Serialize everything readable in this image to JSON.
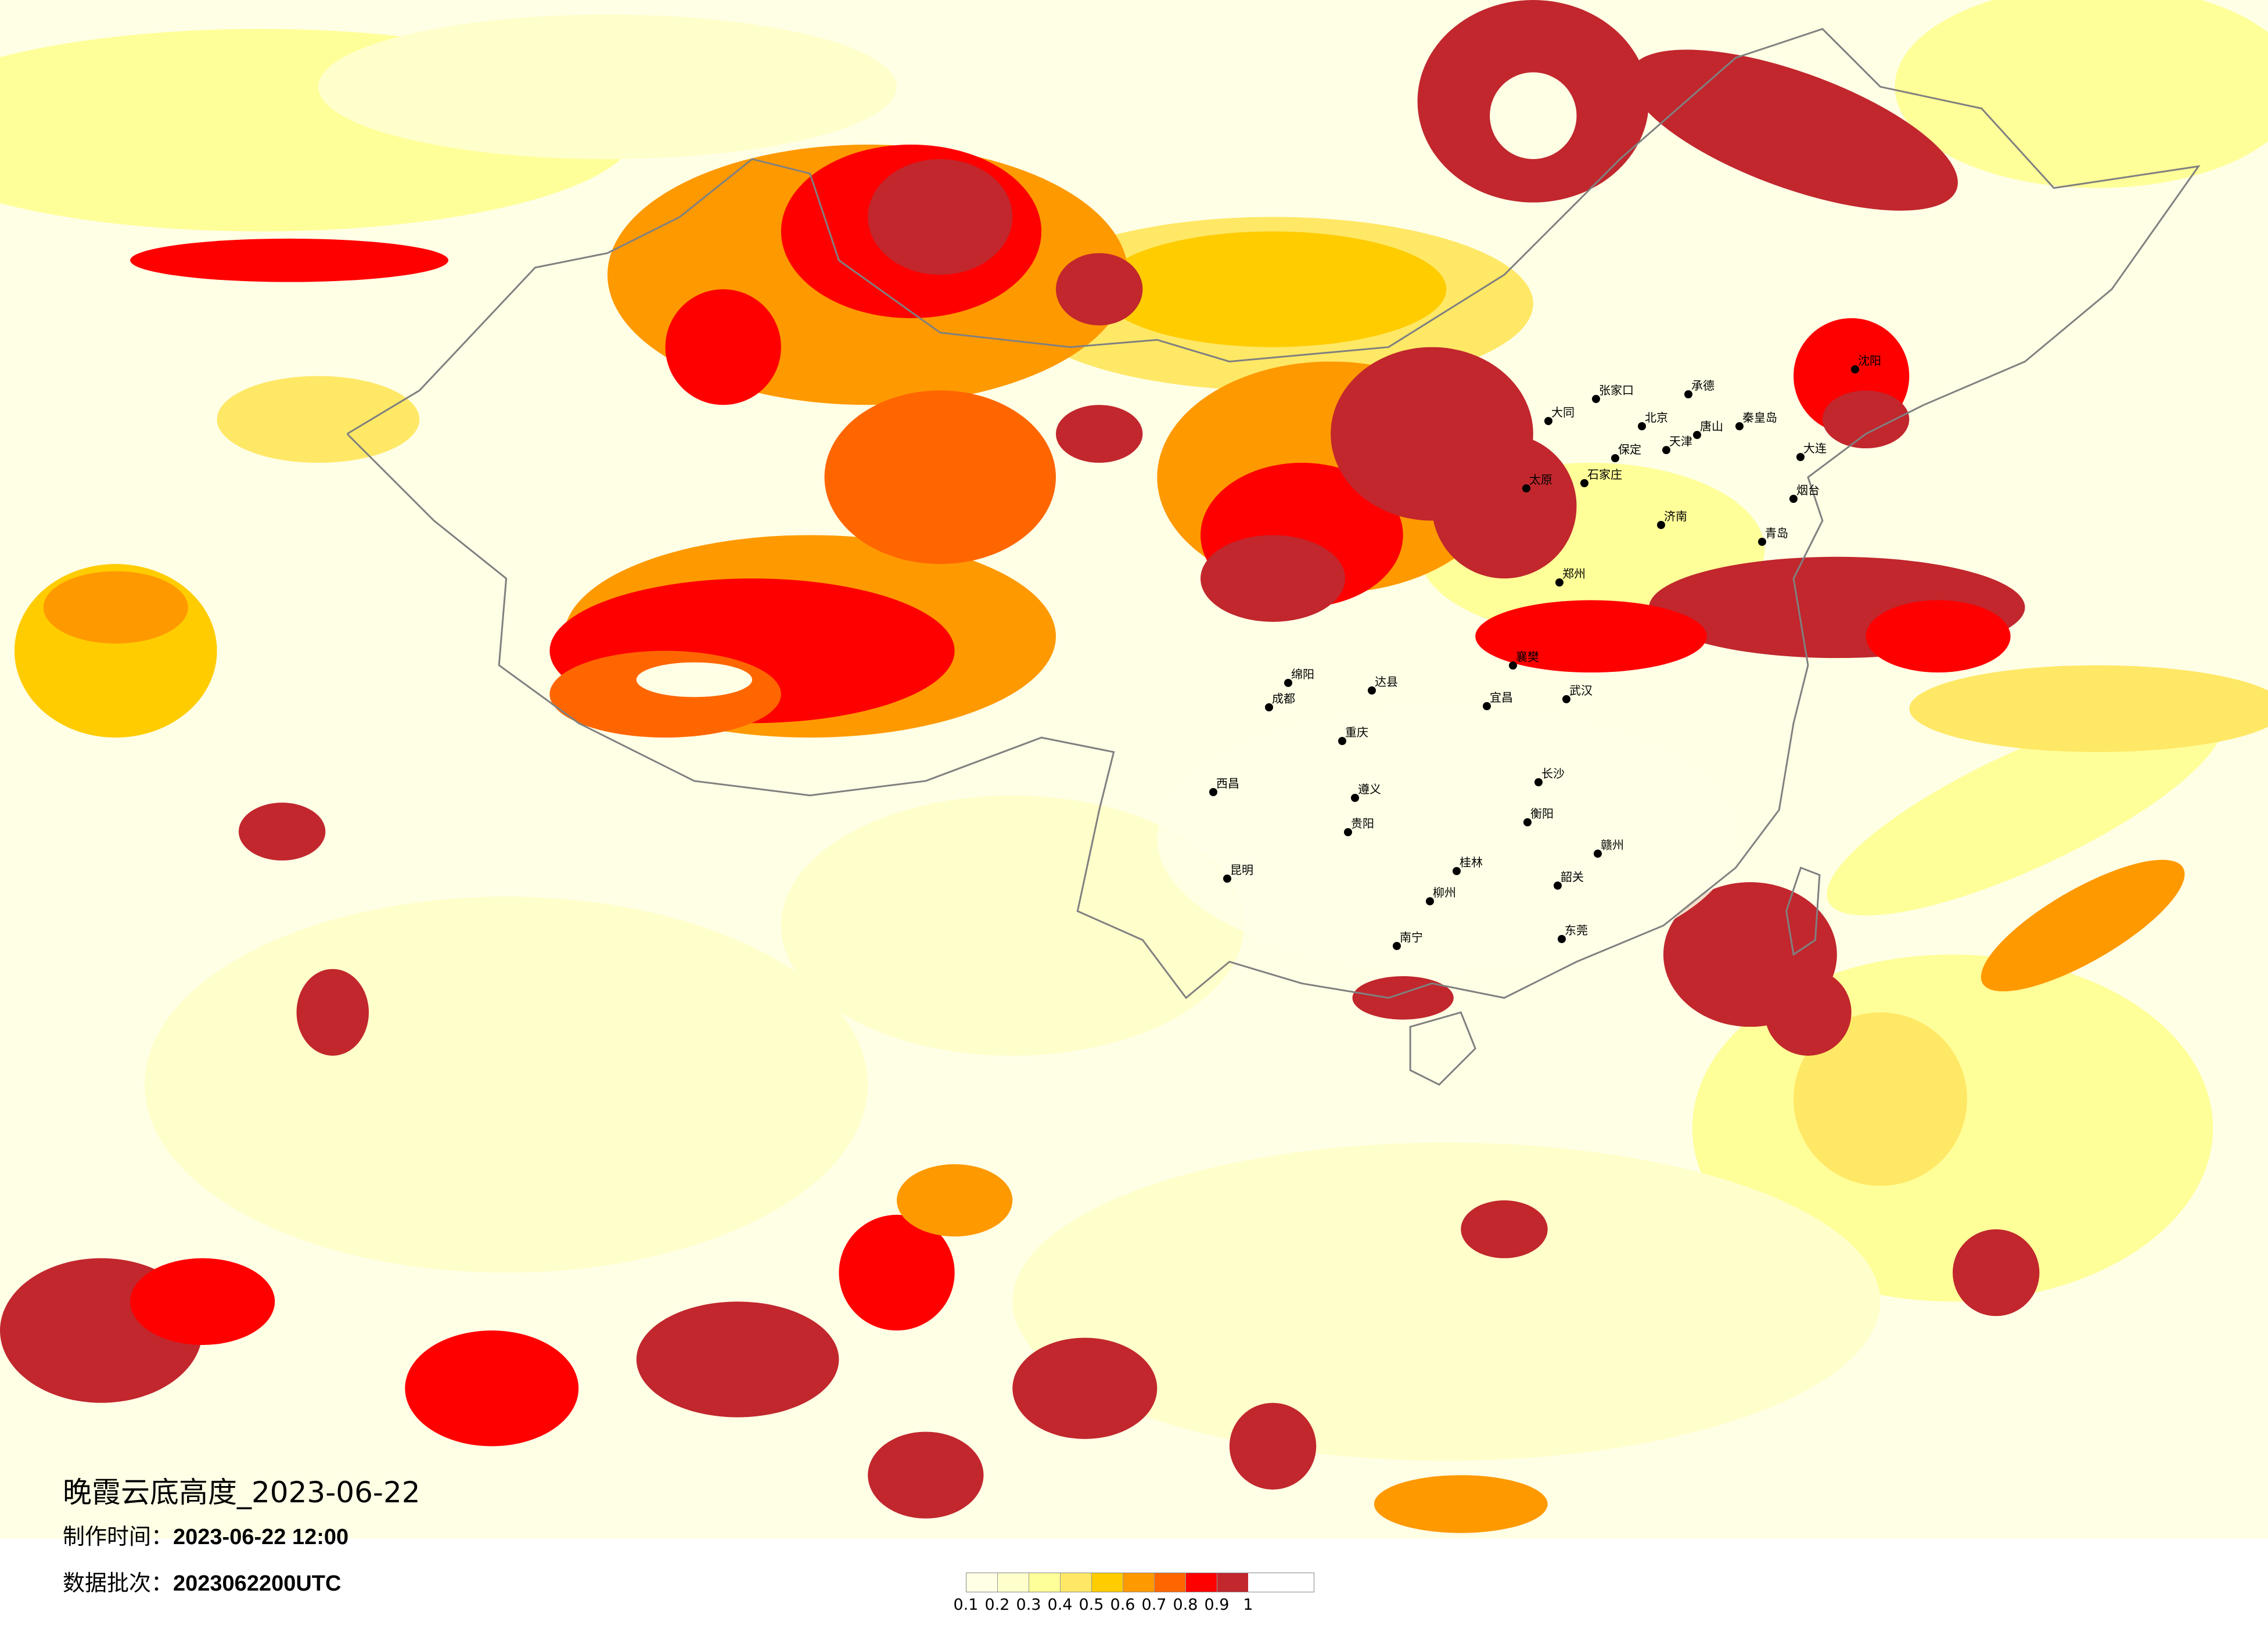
{
  "title": "晚霞云底高度_2023-06-22",
  "made_time": {
    "label": "制作时间：",
    "value": "2023-06-22 12:00"
  },
  "data_batch": {
    "label": "数据批次：",
    "value": "2023062200UTC"
  },
  "legend": {
    "labels": [
      "0.1",
      "0.2",
      "0.3",
      "0.4",
      "0.5",
      "0.6",
      "0.7",
      "0.8",
      "0.9",
      "1"
    ],
    "colors": [
      "#FFFFE6",
      "#FFFFCC",
      "#FFFF99",
      "#FFE866",
      "#FFCC00",
      "#FF9900",
      "#FF6600",
      "#FF0000",
      "#C1272D"
    ]
  },
  "map": {
    "background_color": "#FFFFE6",
    "boundary_color": "#808080",
    "city_dot_color": "#000000",
    "cities": [
      "北京",
      "天津",
      "石家庄",
      "济南",
      "青岛",
      "大连",
      "沈阳",
      "太原",
      "郑州",
      "张家口",
      "承德",
      "唐山",
      "秦皇岛",
      "烟台",
      "保定",
      "大同",
      "重庆",
      "成都",
      "贵阳",
      "昆明",
      "长沙",
      "南宁",
      "桂林",
      "柳州",
      "武汉",
      "宜昌",
      "衡阳",
      "遵义",
      "西昌",
      "绵阳",
      "达县",
      "襄樊",
      "东莞",
      "韶关",
      "赣州"
    ]
  }
}
